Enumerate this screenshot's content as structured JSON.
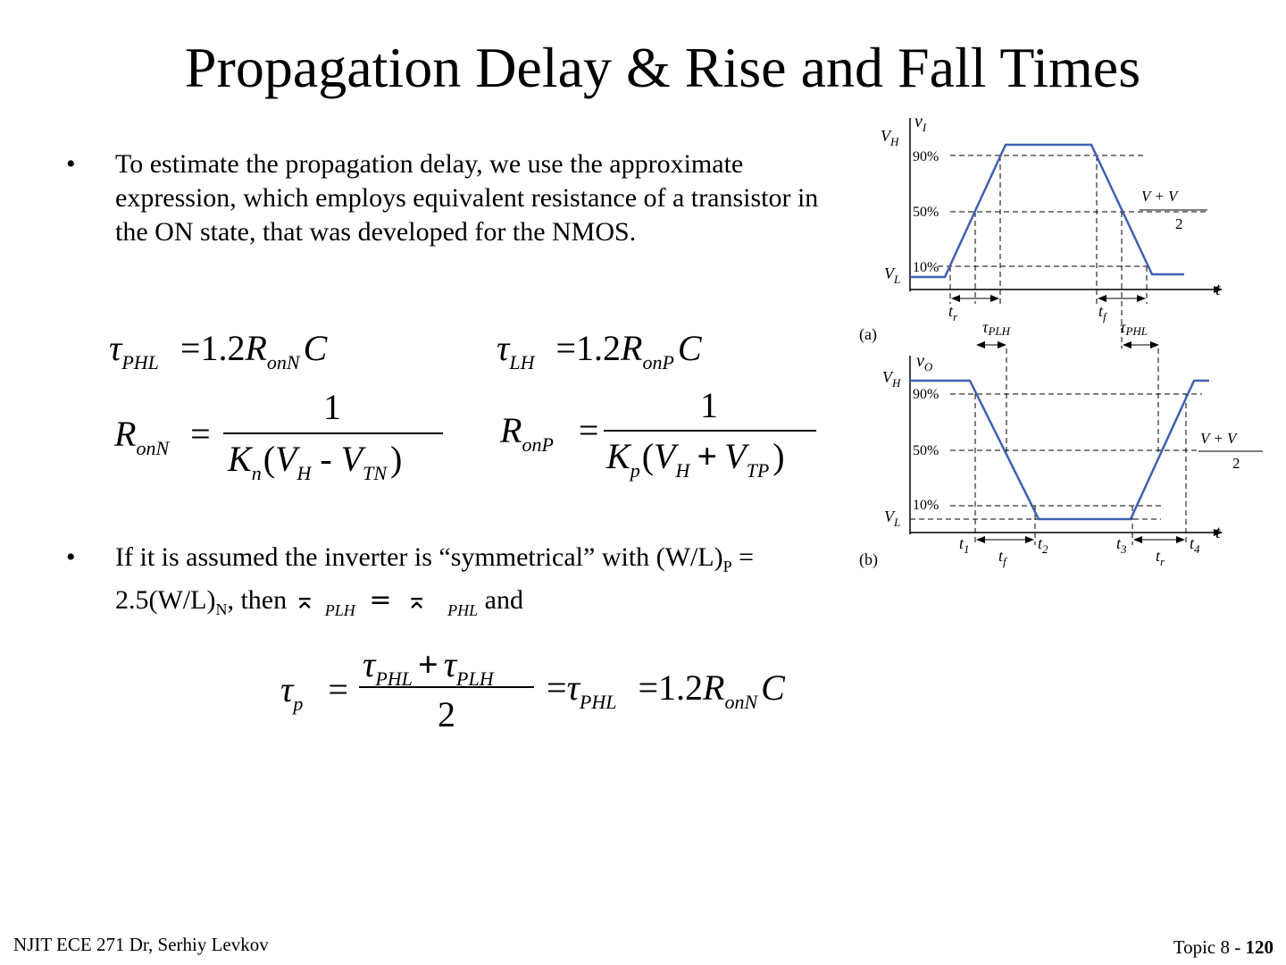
{
  "slide": {
    "title": "Propagation Delay & Rise and Fall Times",
    "bullet_symbol": "•",
    "bullet1": "To estimate the propagation delay, we use the approximate expression, which employs equivalent resistance of a transistor in the ON state, that was developed for the NMOS.",
    "bullet2": {
      "text_a": "If it is assumed the inverter is “symmetrical” with (W/L)",
      "sub_p": "P",
      "text_b": " = 2.5(W/L)",
      "sub_n": "N",
      "text_c": ", then ",
      "glyph": "⌅",
      "sub_plh": "PLH",
      "eq": " = ",
      "sub_phl": "PHL",
      "text_d": " and"
    }
  },
  "equations": {
    "tau": "τ",
    "eq_sign": "=",
    "one": "1",
    "two": "2",
    "coef": "1.2",
    "R": "R",
    "C": "C",
    "K": "K",
    "V": "V",
    "PHL": "PHL",
    "PLH": "PLH",
    "LH": "LH",
    "onN": "onN",
    "onP": "onP",
    "n": "n",
    "p": "p",
    "H": "H",
    "TN": "TN",
    "TP": "TP",
    "minus": "-",
    "plus": "+",
    "lparen": "(",
    "rparen": ")"
  },
  "diagram_a": {
    "label": "(a)",
    "axis_y": "v",
    "axis_y_sub": "I",
    "axis_x": "t",
    "vh": "V",
    "vh_sub": "H",
    "vl": "V",
    "vl_sub": "L",
    "pct90": "90%",
    "pct50": "50%",
    "pct10": "10%",
    "frac_num": "V  + V",
    "frac_num_sub1": "H",
    "frac_num_sub2": "L",
    "frac_den": "2",
    "tr": "t",
    "tr_sub": "r",
    "tf": "t",
    "tf_sub": "f",
    "tau": "τ",
    "tplh_sub": "PLH",
    "tphl_sub": "PHL"
  },
  "diagram_b": {
    "label": "(b)",
    "axis_y": "v",
    "axis_y_sub": "O",
    "axis_x": "t",
    "vh": "V",
    "vh_sub": "H",
    "vl": "V",
    "vl_sub": "L",
    "pct90": "90%",
    "pct50": "50%",
    "pct10": "10%",
    "frac_num": "V  + V",
    "frac_num_sub1": "H",
    "frac_num_sub2": "L",
    "frac_den": "2",
    "t1": "t",
    "t1_sub": "1",
    "t2": "t",
    "t2_sub": "2",
    "t3": "t",
    "t3_sub": "3",
    "t4": "t",
    "t4_sub": "4",
    "tf": "t",
    "tf_sub": "f",
    "tr": "t",
    "tr_sub": "r"
  },
  "colors": {
    "waveform": "#4060b0",
    "text": "#000000"
  },
  "footer": {
    "left": "NJIT ECE 271  Dr, Serhiy Levkov",
    "right_prefix": "Topic 8 - ",
    "right_page": "120"
  }
}
